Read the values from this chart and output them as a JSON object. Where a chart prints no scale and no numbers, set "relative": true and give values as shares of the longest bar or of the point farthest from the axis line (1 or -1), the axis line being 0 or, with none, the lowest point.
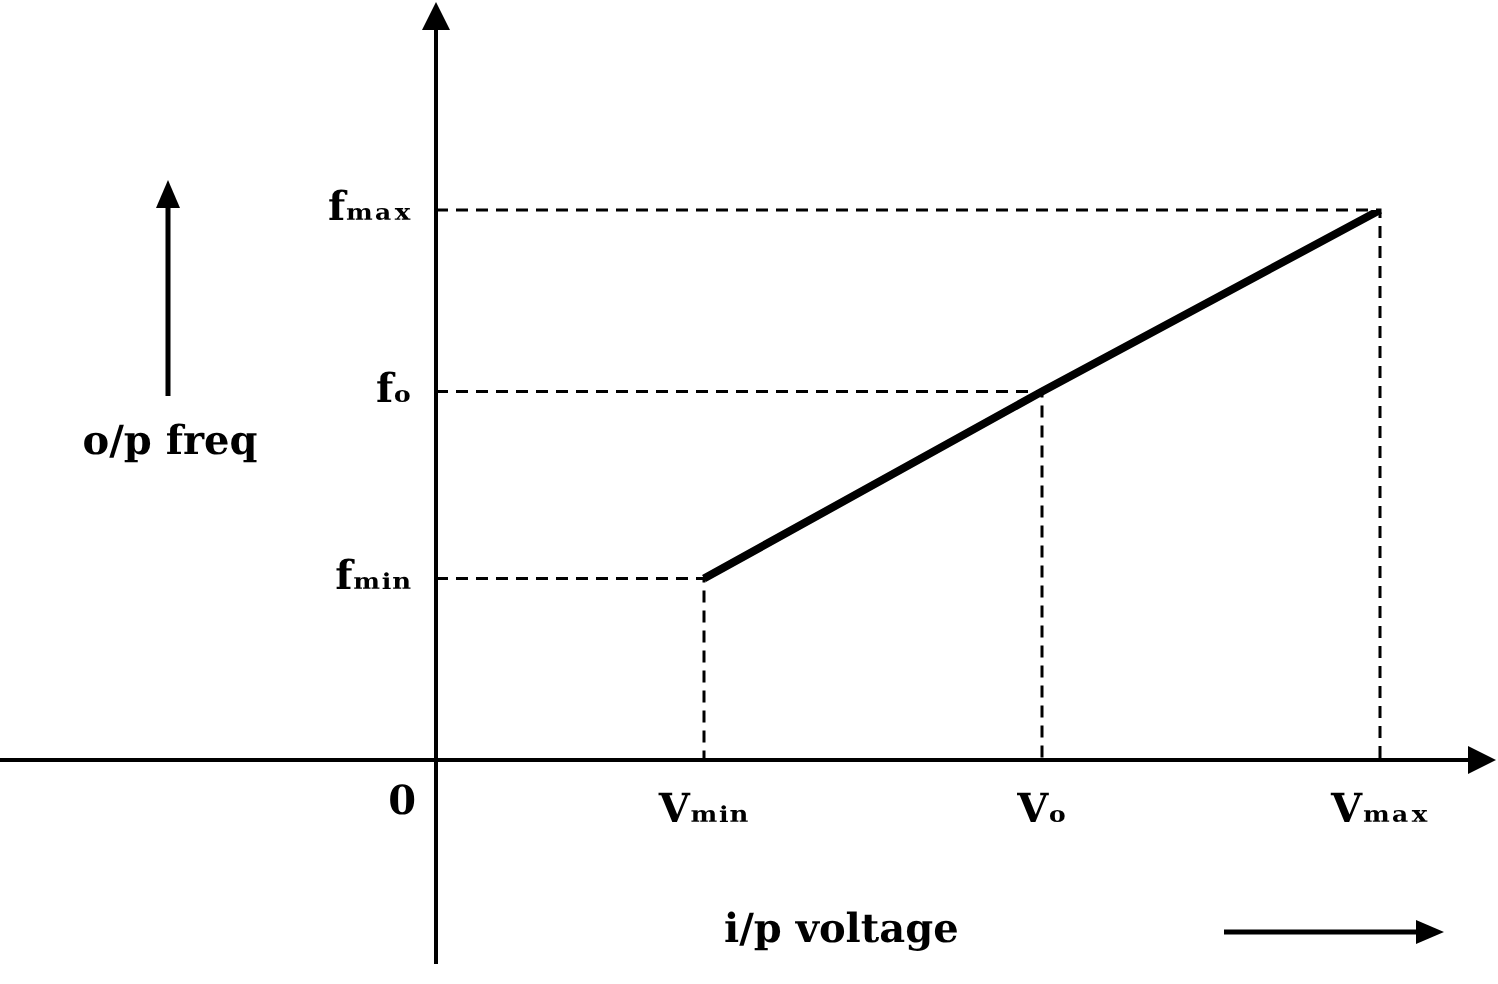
{
  "chart_data": {
    "type": "line",
    "relative": true,
    "categories": [
      "Vₘᵢₙ",
      "Vₒ",
      "Vₘₐₓ"
    ],
    "xlabel": "i/p voltage",
    "ylabel": "o/p freq",
    "marker": "none",
    "series": [
      {
        "color": "#000000",
        "values": [
          0.33,
          0.67,
          1
        ]
      }
    ],
    "annotations": [
      "fₘᵢₙ",
      "fₒ",
      "fₘₐₓ",
      "0"
    ]
  }
}
